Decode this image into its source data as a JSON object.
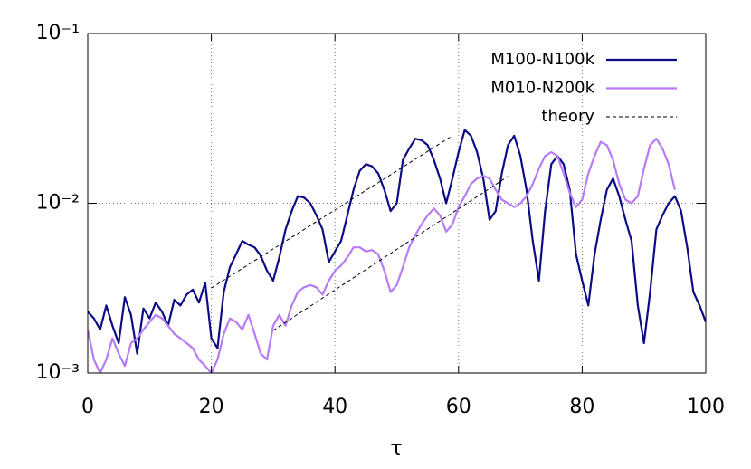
{
  "chart_data": {
    "type": "line",
    "x_label": "τ",
    "log_y": true,
    "grid": true,
    "legend": "top-right",
    "xlim": [
      0,
      100
    ],
    "xticks": [
      0,
      20,
      40,
      60,
      80,
      100
    ],
    "ylim": [
      0.001,
      0.1
    ],
    "yticks": [
      {
        "value": 0.001,
        "label": "10⁻³"
      },
      {
        "value": 0.01,
        "label": "10⁻²"
      },
      {
        "value": 0.1,
        "label": "10⁻¹"
      }
    ],
    "series": [
      {
        "name": "M100-N100k",
        "color": "#0c0c85",
        "dash": false,
        "x": [
          0,
          1,
          2,
          3,
          4,
          5,
          6,
          7,
          8,
          9,
          10,
          11,
          12,
          13,
          14,
          15,
          16,
          17,
          18,
          19,
          20,
          21,
          22,
          23,
          24,
          25,
          26,
          27,
          28,
          29,
          30,
          31,
          32,
          33,
          34,
          35,
          36,
          37,
          38,
          39,
          40,
          41,
          42,
          43,
          44,
          45,
          46,
          47,
          48,
          49,
          50,
          51,
          52,
          53,
          54,
          55,
          56,
          57,
          58,
          59,
          60,
          61,
          62,
          63,
          64,
          65,
          66,
          67,
          68,
          69,
          70,
          71,
          72,
          73,
          74,
          75,
          76,
          77,
          78,
          79,
          80,
          81,
          82,
          83,
          84,
          85,
          86,
          87,
          88,
          89,
          90,
          91,
          92,
          93,
          94,
          95,
          96,
          97,
          98,
          99,
          100
        ],
        "values": [
          0.0023,
          0.0021,
          0.0018,
          0.0025,
          0.0019,
          0.0015,
          0.0028,
          0.0022,
          0.0013,
          0.0024,
          0.0021,
          0.0026,
          0.0023,
          0.0019,
          0.0027,
          0.0025,
          0.0029,
          0.0031,
          0.0026,
          0.0034,
          0.0016,
          0.0014,
          0.003,
          0.0042,
          0.005,
          0.006,
          0.0057,
          0.0055,
          0.0049,
          0.004,
          0.0035,
          0.0048,
          0.007,
          0.009,
          0.011,
          0.0108,
          0.01,
          0.0085,
          0.007,
          0.0045,
          0.0052,
          0.006,
          0.0085,
          0.012,
          0.0155,
          0.017,
          0.0165,
          0.015,
          0.012,
          0.009,
          0.01,
          0.018,
          0.021,
          0.024,
          0.0235,
          0.022,
          0.018,
          0.014,
          0.01,
          0.014,
          0.02,
          0.027,
          0.025,
          0.02,
          0.014,
          0.008,
          0.009,
          0.015,
          0.022,
          0.025,
          0.019,
          0.012,
          0.006,
          0.0035,
          0.009,
          0.017,
          0.019,
          0.017,
          0.012,
          0.005,
          0.0035,
          0.0025,
          0.005,
          0.008,
          0.012,
          0.014,
          0.011,
          0.008,
          0.006,
          0.0025,
          0.0015,
          0.003,
          0.007,
          0.0085,
          0.01,
          0.011,
          0.009,
          0.0055,
          0.003,
          0.0025,
          0.002
        ]
      },
      {
        "name": "M010-N200k",
        "color": "#b77bf5",
        "dash": false,
        "x": [
          0,
          1,
          2,
          3,
          4,
          5,
          6,
          7,
          8,
          9,
          10,
          11,
          12,
          13,
          14,
          15,
          16,
          17,
          18,
          19,
          20,
          21,
          22,
          23,
          24,
          25,
          26,
          27,
          28,
          29,
          30,
          31,
          32,
          33,
          34,
          35,
          36,
          37,
          38,
          39,
          40,
          41,
          42,
          43,
          44,
          45,
          46,
          47,
          48,
          49,
          50,
          51,
          52,
          53,
          54,
          55,
          56,
          57,
          58,
          59,
          60,
          61,
          62,
          63,
          64,
          65,
          66,
          67,
          68,
          69,
          70,
          71,
          72,
          73,
          74,
          75,
          76,
          77,
          78,
          79,
          80,
          81,
          82,
          83,
          84,
          85,
          86,
          87,
          88,
          89,
          90,
          91,
          92,
          93,
          94,
          95
        ],
        "values": [
          0.0018,
          0.0012,
          0.001,
          0.0012,
          0.0016,
          0.0013,
          0.0011,
          0.0015,
          0.0016,
          0.0018,
          0.002,
          0.0022,
          0.0021,
          0.0019,
          0.0017,
          0.0016,
          0.0015,
          0.0014,
          0.0012,
          0.0011,
          0.001,
          0.0012,
          0.0017,
          0.0021,
          0.002,
          0.0018,
          0.0022,
          0.0017,
          0.0013,
          0.0012,
          0.0019,
          0.0022,
          0.0019,
          0.0025,
          0.003,
          0.0032,
          0.0033,
          0.0032,
          0.0029,
          0.0035,
          0.004,
          0.0043,
          0.0048,
          0.0055,
          0.0055,
          0.0052,
          0.0053,
          0.005,
          0.004,
          0.003,
          0.0033,
          0.0042,
          0.0055,
          0.0065,
          0.0075,
          0.0085,
          0.0093,
          0.0085,
          0.0068,
          0.0075,
          0.0095,
          0.011,
          0.013,
          0.014,
          0.0145,
          0.014,
          0.012,
          0.0105,
          0.01,
          0.0095,
          0.01,
          0.011,
          0.013,
          0.016,
          0.019,
          0.02,
          0.019,
          0.015,
          0.0115,
          0.0095,
          0.0105,
          0.015,
          0.019,
          0.023,
          0.022,
          0.018,
          0.013,
          0.0105,
          0.01,
          0.011,
          0.016,
          0.022,
          0.024,
          0.021,
          0.017,
          0.012
        ]
      },
      {
        "name": "theory",
        "color": "#000000",
        "dash": true,
        "x": [
          20,
          59,
          null,
          30,
          68
        ],
        "values": [
          0.00317,
          0.025,
          null,
          0.00178,
          0.0144
        ]
      }
    ]
  }
}
